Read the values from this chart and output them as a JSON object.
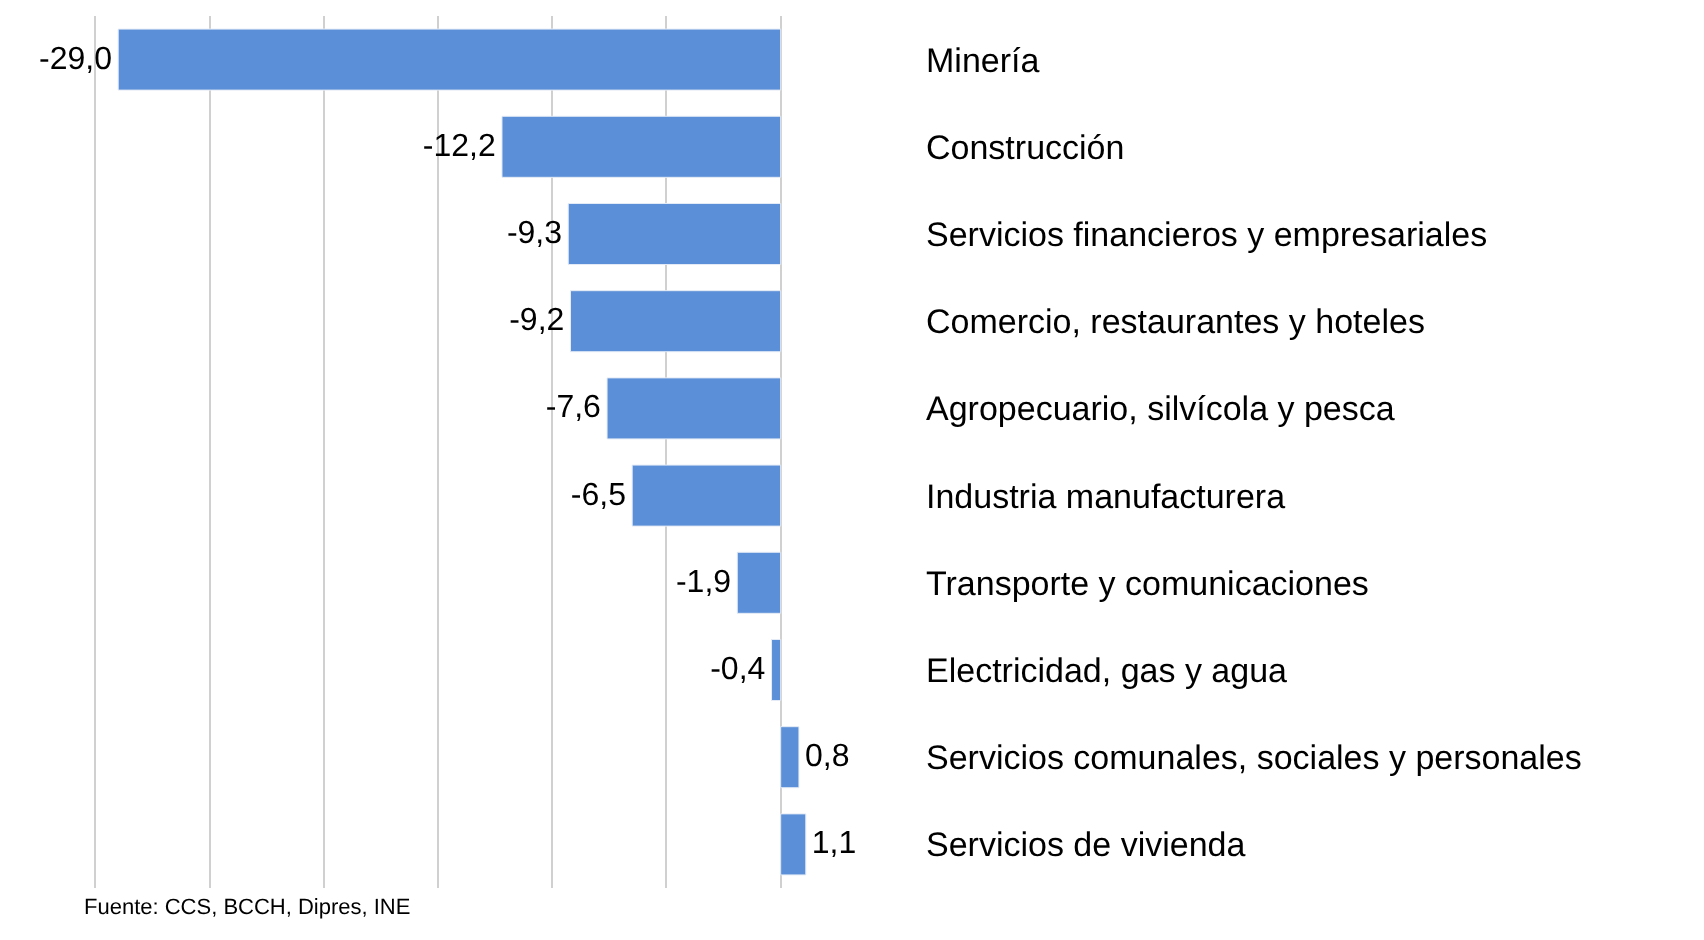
{
  "chart_data": {
    "type": "bar",
    "orientation": "horizontal",
    "categories": [
      "Minería",
      "Construcción",
      "Servicios financieros y empresariales",
      "Comercio, restaurantes y hoteles",
      "Agropecuario, silvícola y pesca",
      "Industria manufacturera",
      "Transporte y comunicaciones",
      "Electricidad, gas y agua",
      "Servicios comunales, sociales y personales",
      "Servicios de vivienda"
    ],
    "values": [
      -29.0,
      -12.2,
      -9.3,
      -9.2,
      -7.6,
      -6.5,
      -1.9,
      -0.4,
      0.8,
      1.1
    ],
    "value_labels": [
      "-29,0",
      "-12,2",
      "-9,3",
      "-9,2",
      "-7,6",
      "-6,5",
      "-1,9",
      "-0,4",
      "0,8",
      "1,1"
    ],
    "color": "#5b8fd8",
    "xticks": [
      {
        "value": -30,
        "label": null
      },
      {
        "value": -25,
        "label": null
      },
      {
        "value": -20,
        "label": null
      },
      {
        "value": -15,
        "label": null
      },
      {
        "value": -10,
        "label": null
      },
      {
        "value": -5,
        "label": null
      },
      {
        "value": 0,
        "label": null
      }
    ],
    "grid": "x",
    "tick_labels": "y",
    "annotations": [
      "Fuente: CCS, BCCH, Dipres, INE"
    ]
  }
}
